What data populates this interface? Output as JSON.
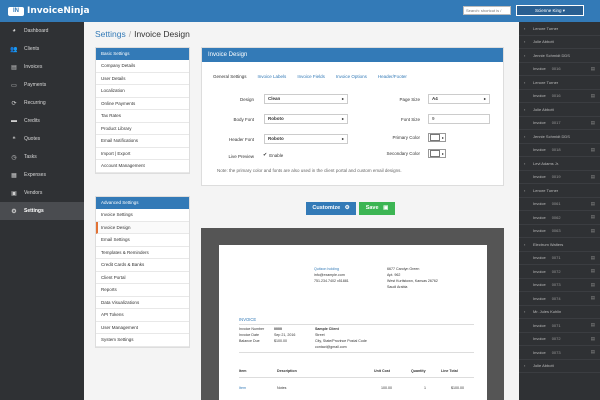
{
  "header": {
    "brand": "InvoiceNinja",
    "brand_icon": "IN",
    "search_placeholder": "Search: shortcut is /",
    "company_button": "Scienne King ▾"
  },
  "sidebar": {
    "items": [
      {
        "label": "Dashboard",
        "icon": "tachometer-icon",
        "glyph": "◕"
      },
      {
        "label": "Clients",
        "icon": "users-icon",
        "glyph": "👥"
      },
      {
        "label": "Invoices",
        "icon": "file-icon",
        "glyph": "▤"
      },
      {
        "label": "Payments",
        "icon": "credit-card-icon",
        "glyph": "▭"
      },
      {
        "label": "Recurring",
        "icon": "recurring-icon",
        "glyph": "⟳"
      },
      {
        "label": "Credits",
        "icon": "credit-icon",
        "glyph": "▬"
      },
      {
        "label": "Quotes",
        "icon": "quote-icon",
        "glyph": "❝"
      },
      {
        "label": "Tasks",
        "icon": "clock-icon",
        "glyph": "◷"
      },
      {
        "label": "Expenses",
        "icon": "expense-icon",
        "glyph": "▦"
      },
      {
        "label": "Vendors",
        "icon": "vendor-icon",
        "glyph": "▣"
      },
      {
        "label": "Settings",
        "icon": "gear-icon",
        "glyph": "⚙"
      }
    ]
  },
  "breadcrumb": {
    "root": "Settings",
    "sep": "/",
    "current": "Invoice Design"
  },
  "basic_settings": {
    "title": "Basic Settings",
    "items": [
      "Company Details",
      "User Details",
      "Localization",
      "Online Payments",
      "Tax Rates",
      "Product Library",
      "Email Notifications",
      "Import | Export",
      "Account Management"
    ]
  },
  "advanced_settings": {
    "title": "Advanced Settings",
    "items": [
      "Invoice Settings",
      "Invoice Design",
      "Email Settings",
      "Templates & Reminders",
      "Credit Cards & Banks",
      "Client Portal",
      "Reports",
      "Data Visualizations",
      "API Tokens",
      "User Management",
      "System Settings"
    ]
  },
  "design_panel": {
    "title": "Invoice Design",
    "tabs": [
      "General Settings",
      "Invoice Labels",
      "Invoice Fields",
      "Invoice Options",
      "Header/Footer"
    ],
    "design_label": "Design",
    "design_value": "Clean",
    "body_font_label": "Body Font",
    "body_font_value": "Roboto",
    "header_font_label": "Header Font",
    "header_font_value": "Roboto",
    "live_preview_label": "Live Preview",
    "enable_label": "Enable",
    "page_size_label": "Page Size",
    "page_size_value": "A4",
    "font_size_label": "Font Size",
    "font_size_value": "9",
    "primary_color_label": "Primary Color",
    "secondary_color_label": "Secondary Color",
    "note": "Note: the primary color and fonts are also used in the client portal and custom email designs."
  },
  "buttons": {
    "customize": "Customize",
    "customize_color": "#337ab7",
    "save": "Save",
    "save_color": "#3cb553"
  },
  "recent": [
    {
      "label": "Lenore Turner",
      "type": "client"
    },
    {
      "label": "Jolie Abbott",
      "type": "client"
    },
    {
      "label": "Jennie Schmidt DDS",
      "type": "client"
    },
    {
      "label": "Invoice",
      "num": "0016",
      "type": "invoice"
    },
    {
      "label": "Lenore Turner",
      "type": "client"
    },
    {
      "label": "Invoice",
      "num": "0016",
      "type": "invoice"
    },
    {
      "label": "Jolie Abbott",
      "type": "client"
    },
    {
      "label": "Invoice",
      "num": "0017",
      "type": "invoice"
    },
    {
      "label": "Jennie Schmidt DDS",
      "type": "client"
    },
    {
      "label": "Invoice",
      "num": "0018",
      "type": "invoice"
    },
    {
      "label": "Levi Adams Jr.",
      "type": "client"
    },
    {
      "label": "Invoice",
      "num": "0019",
      "type": "invoice"
    },
    {
      "label": "Lenore Turner",
      "type": "client"
    },
    {
      "label": "Invoice",
      "num": "0061",
      "type": "invoice"
    },
    {
      "label": "Invoice",
      "num": "0062",
      "type": "invoice"
    },
    {
      "label": "Invoice",
      "num": "0063",
      "type": "invoice"
    },
    {
      "label": "Electrum Walters",
      "type": "client"
    },
    {
      "label": "Invoice",
      "num": "0071",
      "type": "invoice"
    },
    {
      "label": "Invoice",
      "num": "0072",
      "type": "invoice"
    },
    {
      "label": "Invoice",
      "num": "0073",
      "type": "invoice"
    },
    {
      "label": "Invoice",
      "num": "0074",
      "type": "invoice"
    },
    {
      "label": "Mr. Jules Kuhlin",
      "type": "client"
    },
    {
      "label": "Invoice",
      "num": "0071",
      "type": "invoice"
    },
    {
      "label": "Invoice",
      "num": "0072",
      "type": "invoice"
    },
    {
      "label": "Invoice",
      "num": "0073",
      "type": "invoice"
    },
    {
      "label": "Jolie Abbott",
      "type": "client"
    }
  ],
  "invoice_preview": {
    "company": "Quitzon holding",
    "company_email": "info@example.com",
    "company_phone": "751.234.7402 x51881",
    "address1": "6677 Carolyn Green",
    "address2": "Apt. 962",
    "address3": "West Kurtistown, Kansas 26762",
    "address4": "Saudi Arabia",
    "title": "INVOICE",
    "number_label": "Invoice Number",
    "number_value": "0000",
    "date_label": "Invoice Date",
    "date_value": "Sep 21, 2016",
    "due_label": "Balance Due",
    "due_value": "$100.00",
    "client_name": "Sample Client",
    "client_street": "Street",
    "client_city": "City, State/Province Postal Code",
    "client_email": "contact@gmail.com",
    "col_item": "Item",
    "col_desc": "Description",
    "col_cost": "Unit Cost",
    "col_qty": "Quantity",
    "col_total": "Line Total",
    "row_item": "Item",
    "row_desc": "Notes",
    "row_cost": "100.00",
    "row_qty": "1",
    "row_total": "$100.00"
  }
}
